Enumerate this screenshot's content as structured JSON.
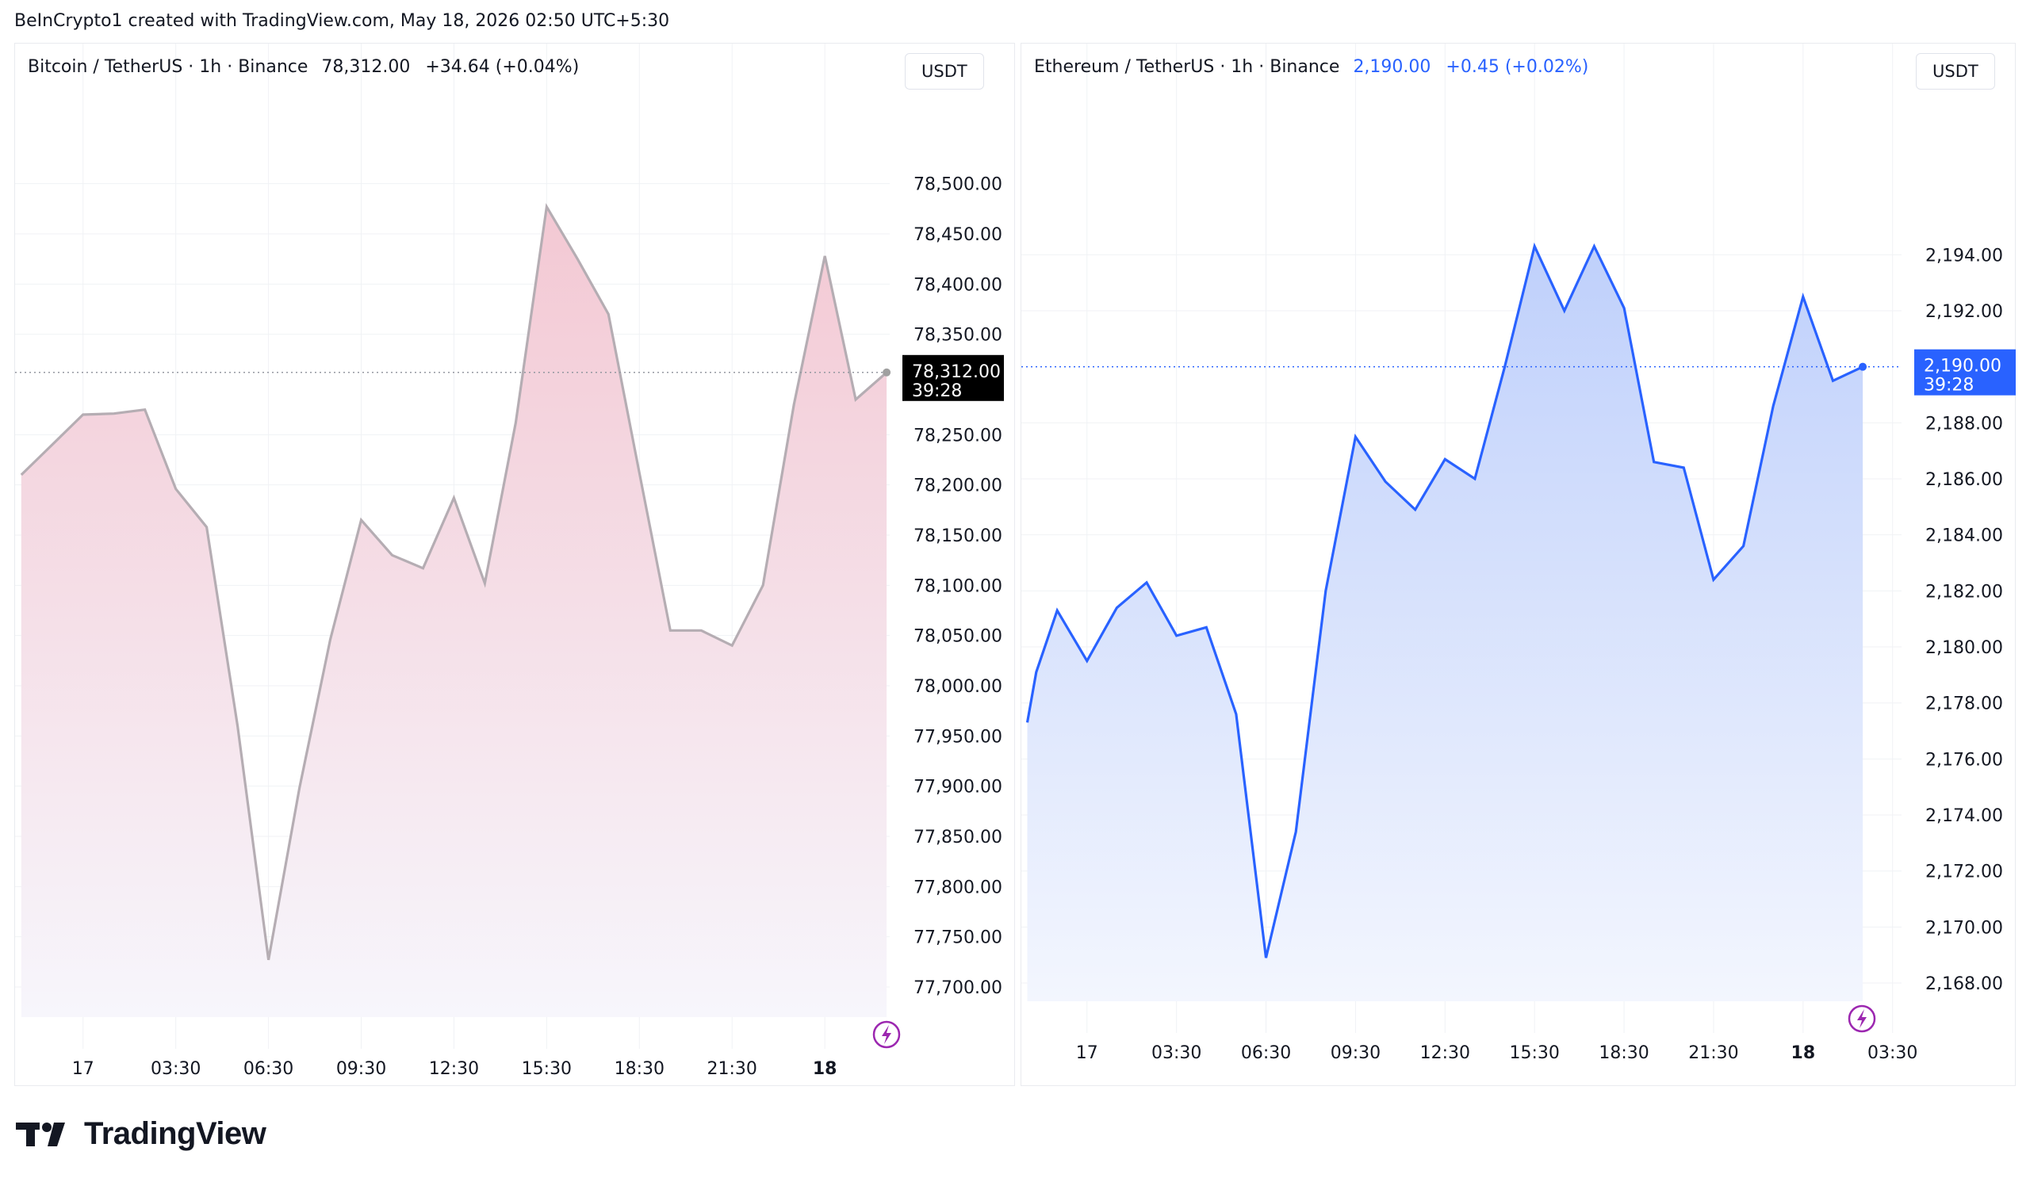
{
  "header": {
    "credit": "BeInCrypto1 created with TradingView.com, May 18, 2026 02:50 UTC+5:30"
  },
  "brand": {
    "name": "TradingView",
    "icon": "tradingview-logo"
  },
  "chart_data": [
    {
      "type": "area",
      "legend_prefix": "Bitcoin / TetherUS · 1h · Binance",
      "price": "78,312.00",
      "change": "+34.64 (+0.04%)",
      "unit": "USDT",
      "price_label": "78,312.00",
      "countdown": "39:28",
      "current_value": 78312,
      "ylim": [
        77670,
        78540
      ],
      "ytick_values": [
        78500,
        78450,
        78400,
        78350,
        78250,
        78200,
        78150,
        78100,
        78050,
        78000,
        77950,
        77900,
        77850,
        77800,
        77750,
        77700
      ],
      "ytick_labels": [
        "78,500.00",
        "78,450.00",
        "78,400.00",
        "78,350.00",
        "78,250.00",
        "78,200.00",
        "78,150.00",
        "78,100.00",
        "78,050.00",
        "78,000.00",
        "77,950.00",
        "77,900.00",
        "77,850.00",
        "77,800.00",
        "77,750.00",
        "77,700.00"
      ],
      "xtick_labels": [
        "17",
        "03:30",
        "06:30",
        "09:30",
        "12:30",
        "15:30",
        "18:30",
        "21:30",
        "18"
      ],
      "xtick_hours": [
        0,
        3,
        6,
        9,
        12,
        15,
        18,
        21,
        24
      ],
      "x_start_hour": -2.2,
      "x_end_hour": 26.1,
      "x_hours": [
        -2,
        -1,
        0,
        1,
        2,
        3,
        4,
        5,
        6,
        7,
        8,
        9,
        10,
        11,
        12,
        13,
        14,
        15,
        16,
        17,
        18,
        19,
        20,
        21,
        22,
        23,
        24,
        25,
        26
      ],
      "values": [
        78210,
        78240,
        78270,
        78271,
        78275,
        78196,
        78158,
        77960,
        77727,
        77898,
        78046,
        78165,
        78130,
        78117,
        78187,
        78102,
        78262,
        78477,
        78425,
        78370,
        78212,
        78055,
        78055,
        78040,
        78100,
        78280,
        78428,
        78285,
        78312
      ],
      "line_color": "#b5adb3",
      "fill_top": "#f3c8d3",
      "fill_bottom": "#f7f6fc",
      "price_label_bg": "#000000",
      "last_dot_color": "#a0a0a0",
      "grid": true
    },
    {
      "type": "area",
      "legend_prefix": "Ethereum / TetherUS · 1h · Binance",
      "price": "2,190.00",
      "change": "+0.45 (+0.02%)",
      "unit": "USDT",
      "price_label": "2,190.00",
      "countdown": "39:28",
      "current_value": 2190,
      "ylim": [
        2167.35,
        2198.0
      ],
      "ytick_values": [
        2194,
        2192,
        2188,
        2186,
        2184,
        2182,
        2180,
        2178,
        2176,
        2174,
        2172,
        2170,
        2168
      ],
      "ytick_labels": [
        "2,194.00",
        "2,192.00",
        "2,188.00",
        "2,186.00",
        "2,184.00",
        "2,182.00",
        "2,180.00",
        "2,178.00",
        "2,176.00",
        "2,174.00",
        "2,172.00",
        "2,170.00",
        "2,168.00"
      ],
      "xtick_labels": [
        "17",
        "03:30",
        "06:30",
        "09:30",
        "12:30",
        "15:30",
        "18:30",
        "21:30",
        "18",
        "03:30"
      ],
      "xtick_hours": [
        0,
        3,
        6,
        9,
        12,
        15,
        18,
        21,
        24,
        27
      ],
      "x_start_hour": -2.2,
      "x_end_hour": 27.3,
      "x_hours": [
        -2,
        -1.7,
        -1,
        0,
        1,
        2,
        3,
        4,
        5,
        6,
        7,
        8,
        9,
        10,
        11,
        12,
        13,
        14,
        15,
        16,
        17,
        18,
        19,
        20,
        21,
        22,
        23,
        24,
        25,
        26
      ],
      "values": [
        2177.3,
        2179.1,
        2181.3,
        2179.5,
        2181.4,
        2182.3,
        2180.4,
        2180.7,
        2177.6,
        2168.9,
        2173.4,
        2182.0,
        2187.5,
        2185.9,
        2184.9,
        2186.7,
        2186.0,
        2190.0,
        2194.3,
        2192.0,
        2194.3,
        2192.1,
        2186.6,
        2186.4,
        2182.4,
        2183.6,
        2188.6,
        2192.5,
        2189.5,
        2190.0
      ],
      "line_color": "#2962ff",
      "fill_top": "#bfd0fb",
      "fill_bottom": "#f3f6fe",
      "price_label_bg": "#2962ff",
      "last_dot_color": "#2962ff",
      "grid": true
    }
  ]
}
